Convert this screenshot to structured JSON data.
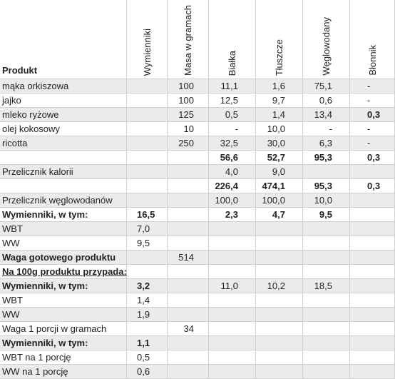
{
  "table": {
    "header": [
      "Produkt",
      "Wymienniki",
      "Masa w gramach",
      "Białka",
      "Tłuszcze",
      "Węglowodany",
      "Błonnik"
    ],
    "rows": [
      [
        "mąka orkiszowa",
        null,
        "100",
        "11,1",
        "1,6",
        "75,1",
        "-"
      ],
      [
        "jajko",
        null,
        "100",
        "12,5",
        "9,7",
        "0,6",
        "-"
      ],
      [
        "mleko ryżowe",
        null,
        "125",
        "0,5",
        "1,4",
        "13,4",
        "0,3"
      ],
      [
        "olej kokosowy",
        null,
        "10",
        "-",
        "10,0",
        "-",
        "-"
      ],
      [
        "ricotta",
        null,
        "250",
        "32,5",
        "30,0",
        "6,3",
        "-"
      ],
      [
        null,
        null,
        null,
        "56,6",
        "52,7",
        "95,3",
        "0,3"
      ],
      [
        "Przelicznik kalorii",
        null,
        null,
        "4,0",
        "9,0",
        null,
        null
      ],
      [
        null,
        null,
        null,
        "226,4",
        "474,1",
        "95,3",
        "0,3"
      ],
      [
        "Przelicznik węglowodanów",
        null,
        null,
        "100,0",
        "100,0",
        "10,0",
        null
      ],
      [
        "Wymienniki, w tym:",
        "16,5",
        null,
        "2,3",
        "4,7",
        "9,5",
        null
      ],
      [
        "WBT",
        "7,0",
        null,
        null,
        null,
        null,
        null
      ],
      [
        "WW",
        "9,5",
        null,
        null,
        null,
        null,
        null
      ],
      [
        "Waga gotowego produktu",
        null,
        "514",
        null,
        null,
        null,
        null
      ],
      [
        "Na 100g produktu przypada:",
        null,
        null,
        null,
        null,
        null,
        null
      ],
      [
        "Wymienniki, w tym:",
        "3,2",
        null,
        "11,0",
        "10,2",
        "18,5",
        null
      ],
      [
        "WBT",
        "1,4",
        null,
        null,
        null,
        null,
        null
      ],
      [
        "WW",
        "1,9",
        null,
        null,
        null,
        null,
        null
      ],
      [
        "Waga 1 porcji w gramach",
        null,
        "34",
        null,
        null,
        null,
        null
      ],
      [
        "Wymienniki, w tym:",
        "1,1",
        null,
        null,
        null,
        null,
        null
      ],
      [
        "WBT na 1 porcję",
        "0,5",
        null,
        null,
        null,
        null,
        null
      ],
      [
        "WW na 1 porcję",
        "0,6",
        null,
        null,
        null,
        null,
        null
      ]
    ]
  }
}
